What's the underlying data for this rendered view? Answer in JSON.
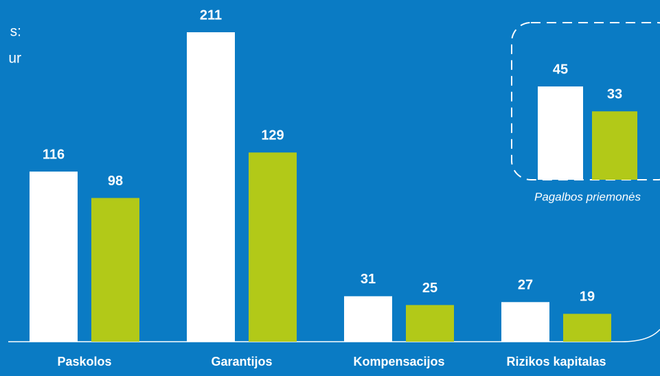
{
  "chart_data": [
    {
      "type": "bar",
      "title_lines": [
        "s:",
        "ur"
      ],
      "categories": [
        "Paskolos",
        "Garantijos",
        "Kompensacijos",
        "Rizikos kapitalas"
      ],
      "series": [
        {
          "color": "#ffffff",
          "values": [
            116,
            211,
            31,
            27
          ]
        },
        {
          "color": "#b2c918",
          "values": [
            98,
            129,
            25,
            19
          ]
        }
      ],
      "ylim": [
        0,
        211
      ]
    },
    {
      "type": "bar",
      "categories": [
        "Pagalbos priemonės"
      ],
      "series": [
        {
          "color": "#ffffff",
          "values": [
            45
          ]
        },
        {
          "color": "#b2c918",
          "values": [
            33
          ]
        }
      ],
      "ylim": [
        0,
        45
      ]
    }
  ]
}
